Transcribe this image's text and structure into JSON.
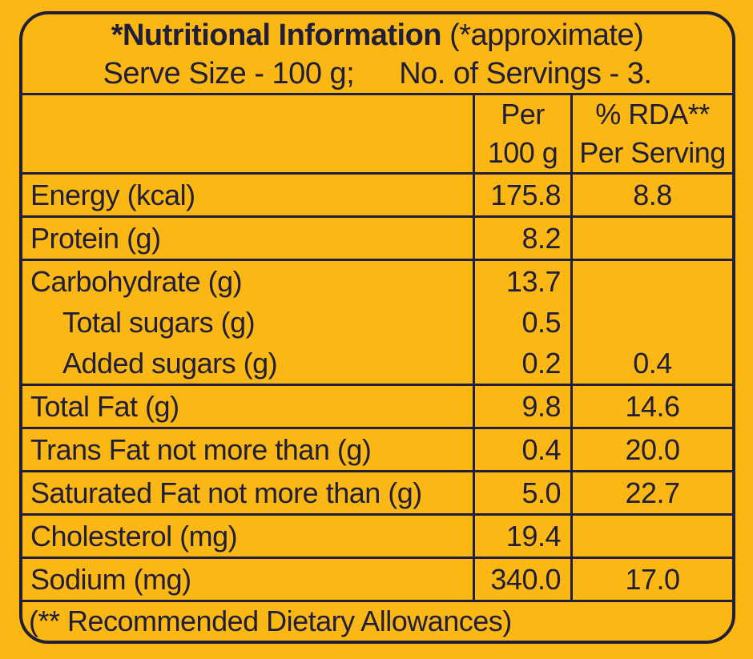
{
  "palette": {
    "background": "#FBB713",
    "ink": "#201E38"
  },
  "header": {
    "title_bold": "*Nutritional Information",
    "title_note": " (*approximate)",
    "serve_size": "Serve Size - 100 g;",
    "servings": "No. of Servings - 3."
  },
  "columns": {
    "per100": {
      "line1": "Per",
      "line2": "100 g"
    },
    "rda": {
      "line1": "% RDA**",
      "line2": "Per Serving"
    }
  },
  "groups": [
    {
      "lines": [
        {
          "label": "Energy (kcal)",
          "per100": "175.8",
          "rda": "8.8"
        }
      ]
    },
    {
      "lines": [
        {
          "label": "Protein (g)",
          "per100": "8.2",
          "rda": ""
        }
      ]
    },
    {
      "lines": [
        {
          "label": "Carbohydrate (g)",
          "per100": "13.7",
          "rda": ""
        },
        {
          "label": "Total sugars (g)",
          "per100": "0.5",
          "rda": ""
        },
        {
          "label": "Added sugars (g)",
          "per100": "0.2",
          "rda": "0.4"
        }
      ]
    },
    {
      "lines": [
        {
          "label": "Total Fat (g)",
          "per100": "9.8",
          "rda": "14.6"
        }
      ]
    },
    {
      "lines": [
        {
          "label": "Trans Fat not more than (g)",
          "per100": "0.4",
          "rda": "20.0"
        }
      ]
    },
    {
      "lines": [
        {
          "label": "Saturated Fat not more than (g)",
          "per100": "5.0",
          "rda": "22.7"
        }
      ]
    },
    {
      "lines": [
        {
          "label": "Cholesterol (mg)",
          "per100": "19.4",
          "rda": ""
        }
      ]
    },
    {
      "lines": [
        {
          "label": "Sodium (mg)",
          "per100": "340.0",
          "rda": "17.0"
        }
      ]
    }
  ],
  "footnote": "(** Recommended Dietary Allowances)"
}
